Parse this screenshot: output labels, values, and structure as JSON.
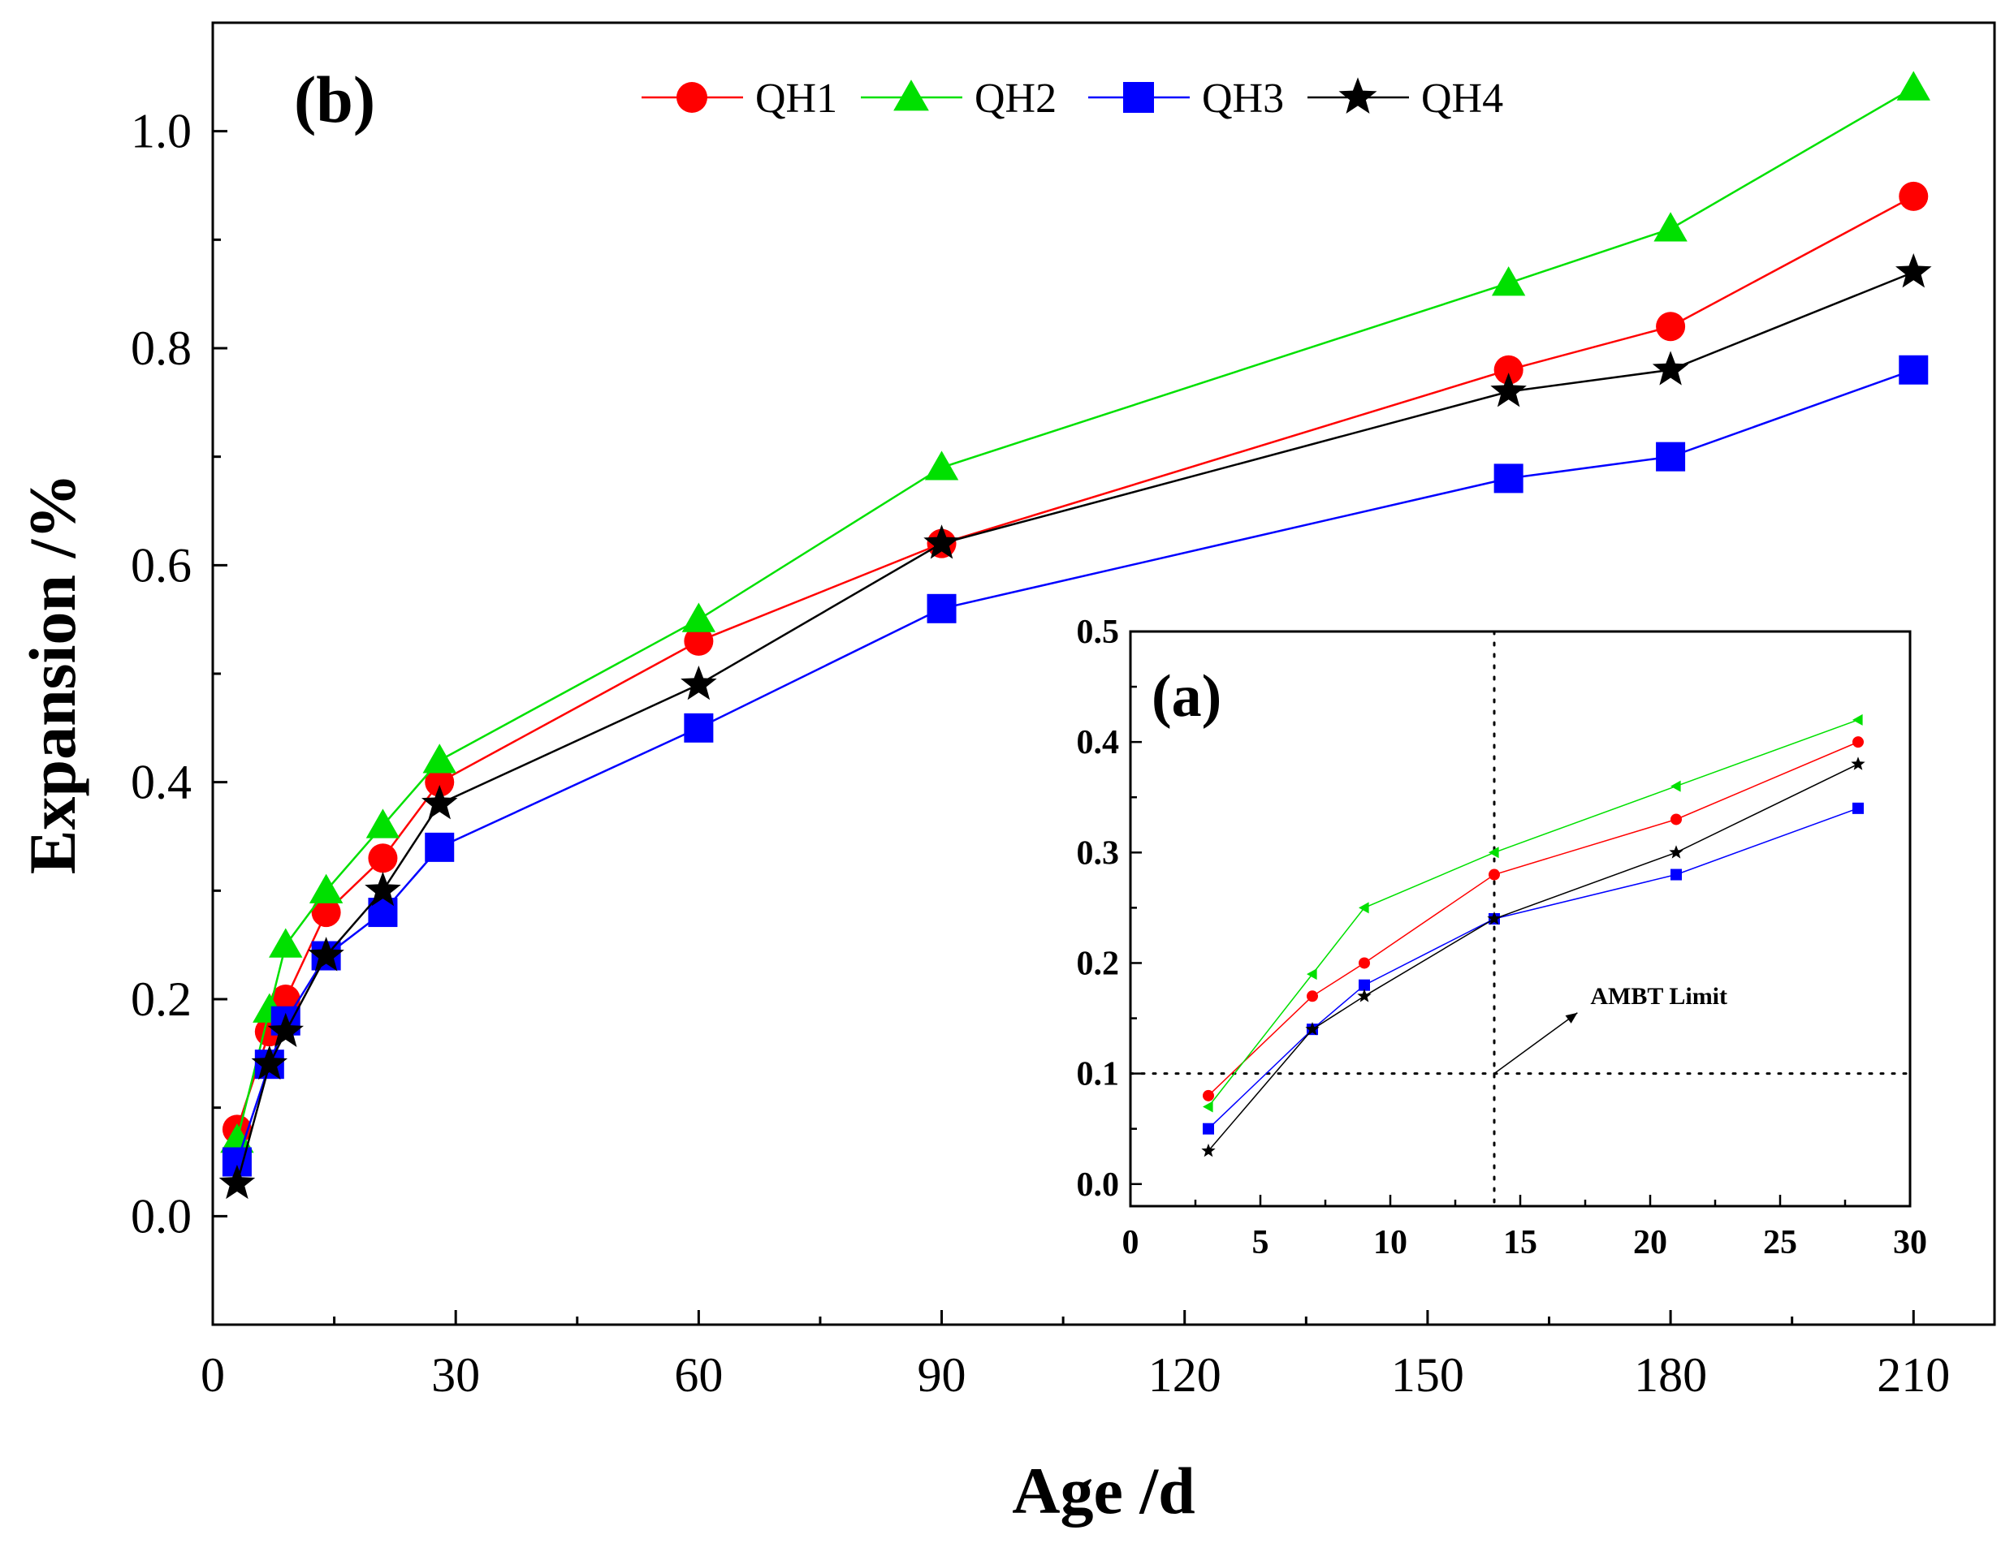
{
  "chart_data": [
    {
      "id": "main",
      "type": "line",
      "panel_label": "(b)",
      "title": "",
      "xlabel": "Age /d",
      "ylabel": "Expansion /%",
      "xlim": [
        0,
        220
      ],
      "ylim": [
        -0.1,
        1.1
      ],
      "xticks": [
        0,
        30,
        60,
        90,
        120,
        150,
        180,
        210
      ],
      "xtick_labels": [
        "0",
        "30",
        "60",
        "90",
        "120",
        "150",
        "180",
        "210"
      ],
      "yticks": [
        0.0,
        0.2,
        0.4,
        0.6,
        0.8,
        1.0
      ],
      "ytick_labels": [
        "0.0",
        "0.2",
        "0.4",
        "0.6",
        "0.8",
        "1.0"
      ],
      "legend_position": "top",
      "x": [
        3,
        7,
        9,
        14,
        21,
        28,
        60,
        90,
        160,
        180,
        210
      ],
      "series": [
        {
          "name": "QH1",
          "color": "#ff0000",
          "marker": "circle",
          "values": [
            0.08,
            0.17,
            0.2,
            0.28,
            0.33,
            0.4,
            0.53,
            0.62,
            0.78,
            0.82,
            0.94
          ]
        },
        {
          "name": "QH2",
          "color": "#00e000",
          "marker": "triangle",
          "values": [
            0.07,
            0.19,
            0.25,
            0.3,
            0.36,
            0.42,
            0.55,
            0.69,
            0.86,
            0.91,
            1.04
          ]
        },
        {
          "name": "QH3",
          "color": "#0000ff",
          "marker": "square",
          "values": [
            0.05,
            0.14,
            0.18,
            0.24,
            0.28,
            0.34,
            0.45,
            0.56,
            0.68,
            0.7,
            0.78
          ]
        },
        {
          "name": "QH4",
          "color": "#000000",
          "marker": "star",
          "values": [
            0.03,
            0.14,
            0.17,
            0.24,
            0.3,
            0.38,
            0.49,
            0.62,
            0.76,
            0.78,
            0.87
          ]
        }
      ]
    },
    {
      "id": "inset",
      "type": "line",
      "panel_label": "(a)",
      "title": "",
      "xlabel": "",
      "ylabel": "",
      "xlim": [
        0,
        30
      ],
      "ylim": [
        -0.02,
        0.5
      ],
      "xticks": [
        0,
        5,
        10,
        15,
        20,
        25,
        30
      ],
      "xtick_labels": [
        "0",
        "5",
        "10",
        "15",
        "20",
        "25",
        "30"
      ],
      "yticks": [
        0.0,
        0.1,
        0.2,
        0.3,
        0.4,
        0.5
      ],
      "ytick_labels": [
        "0.0",
        "0.1",
        "0.2",
        "0.3",
        "0.4",
        "0.5"
      ],
      "x": [
        3,
        7,
        9,
        14,
        21,
        28
      ],
      "series": [
        {
          "name": "QH1",
          "color": "#ff0000",
          "marker": "circle",
          "values": [
            0.08,
            0.17,
            0.2,
            0.28,
            0.33,
            0.4
          ]
        },
        {
          "name": "QH2",
          "color": "#00e000",
          "marker": "triangle-left",
          "values": [
            0.07,
            0.19,
            0.25,
            0.3,
            0.36,
            0.42
          ]
        },
        {
          "name": "QH3",
          "color": "#0000ff",
          "marker": "square",
          "values": [
            0.05,
            0.14,
            0.18,
            0.24,
            0.28,
            0.34
          ]
        },
        {
          "name": "QH4",
          "color": "#000000",
          "marker": "star",
          "values": [
            0.03,
            0.14,
            0.17,
            0.24,
            0.3,
            0.38
          ]
        }
      ],
      "reference_lines": {
        "limit_value": 0.1,
        "limit_age": 14
      },
      "annotation": {
        "text": "AMBT Limit",
        "points_to": [
          14,
          0.1
        ]
      }
    }
  ]
}
